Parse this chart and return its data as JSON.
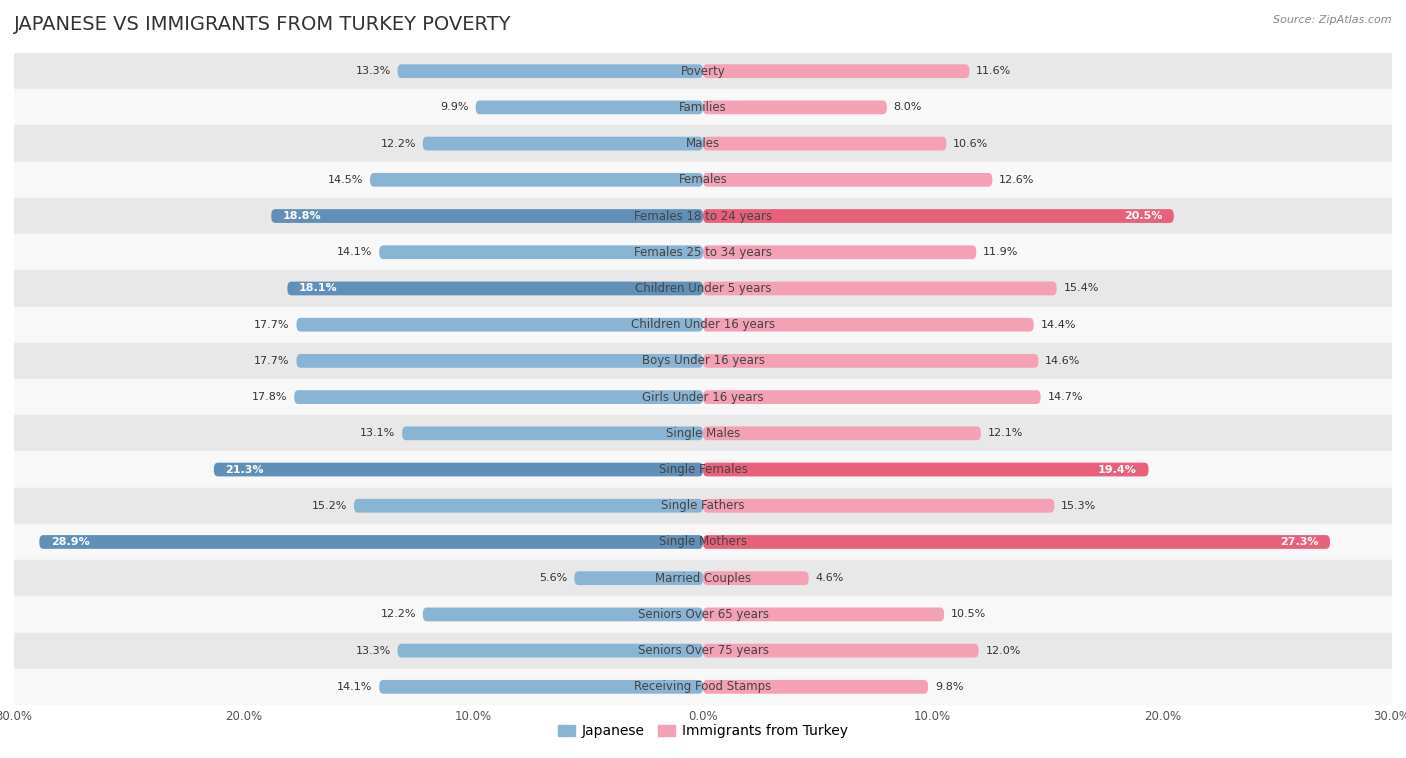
{
  "title": "JAPANESE VS IMMIGRANTS FROM TURKEY POVERTY",
  "source": "Source: ZipAtlas.com",
  "categories": [
    "Poverty",
    "Families",
    "Males",
    "Females",
    "Females 18 to 24 years",
    "Females 25 to 34 years",
    "Children Under 5 years",
    "Children Under 16 years",
    "Boys Under 16 years",
    "Girls Under 16 years",
    "Single Males",
    "Single Females",
    "Single Fathers",
    "Single Mothers",
    "Married Couples",
    "Seniors Over 65 years",
    "Seniors Over 75 years",
    "Receiving Food Stamps"
  ],
  "japanese_values": [
    13.3,
    9.9,
    12.2,
    14.5,
    18.8,
    14.1,
    18.1,
    17.7,
    17.7,
    17.8,
    13.1,
    21.3,
    15.2,
    28.9,
    5.6,
    12.2,
    13.3,
    14.1
  ],
  "turkey_values": [
    11.6,
    8.0,
    10.6,
    12.6,
    20.5,
    11.9,
    15.4,
    14.4,
    14.6,
    14.7,
    12.1,
    19.4,
    15.3,
    27.3,
    4.6,
    10.5,
    12.0,
    9.8
  ],
  "japanese_color": "#8ab4d4",
  "turkey_color": "#f4a0b5",
  "japanese_highlight_color": "#6090b8",
  "turkey_highlight_color": "#e8607a",
  "highlight_japanese": [
    4,
    6,
    11,
    13
  ],
  "highlight_turkey": [
    4,
    11,
    13
  ],
  "row_colors": [
    "#e8e8e8",
    "#f8f8f8"
  ],
  "axis_limit": 30.0,
  "legend_japanese": "Japanese",
  "legend_turkey": "Immigrants from Turkey",
  "bar_height": 0.38,
  "title_fontsize": 14,
  "label_fontsize": 8.5,
  "value_fontsize": 8.0
}
